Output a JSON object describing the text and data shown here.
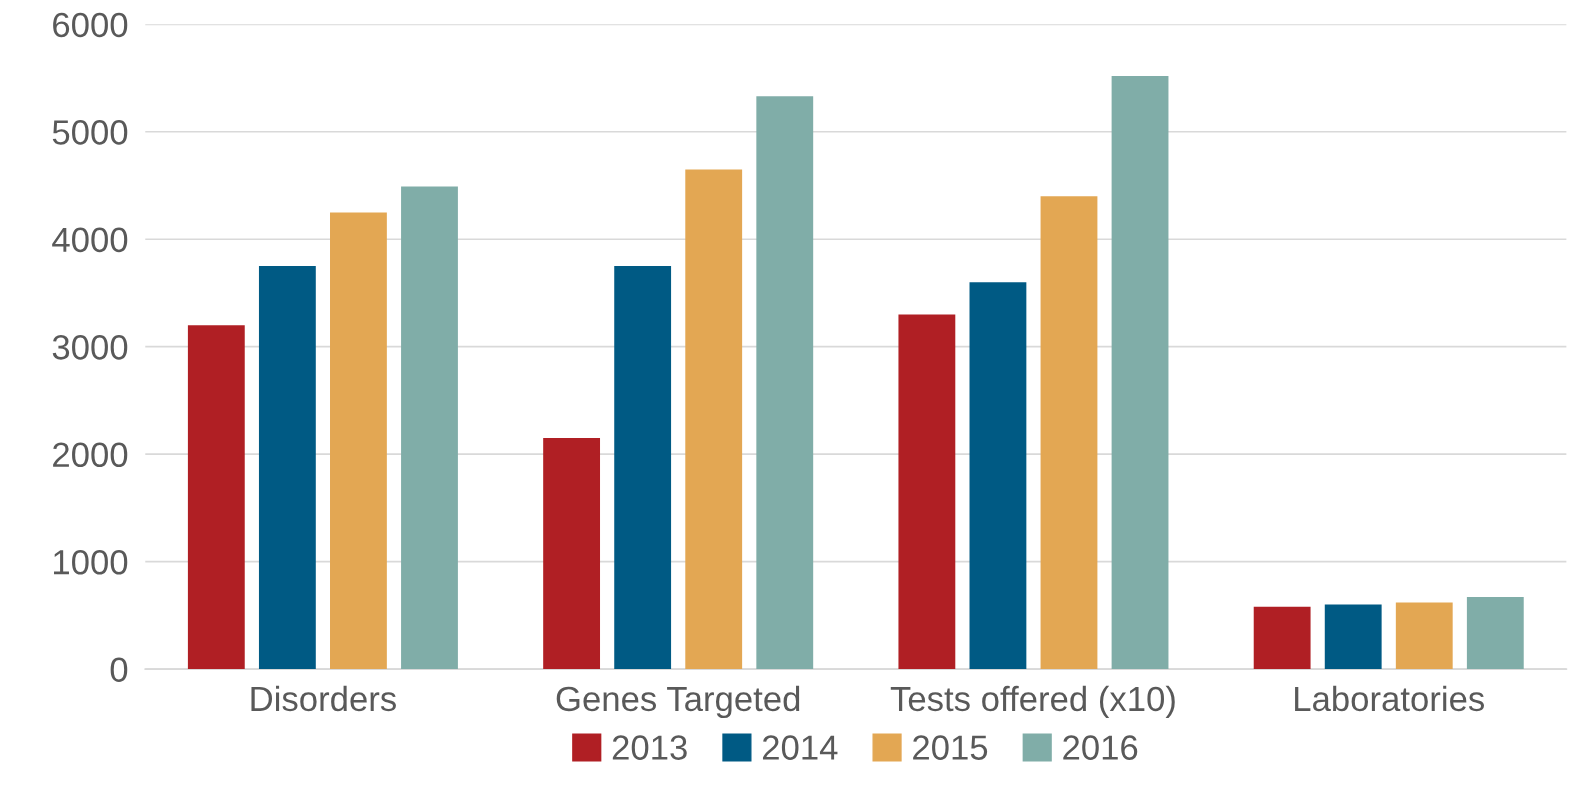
{
  "chart_data": {
    "type": "bar",
    "categories": [
      "Disorders",
      "Genes Targeted",
      "Tests offered (x10)",
      "Laboratories"
    ],
    "series": [
      {
        "name": "2013",
        "color": "#b01f24",
        "values": [
          3200,
          2150,
          3300,
          580
        ]
      },
      {
        "name": "2014",
        "color": "#005a84",
        "values": [
          3750,
          3750,
          3600,
          600
        ]
      },
      {
        "name": "2015",
        "color": "#e3a753",
        "values": [
          4250,
          4650,
          4400,
          620
        ]
      },
      {
        "name": "2016",
        "color": "#80ada8",
        "values": [
          4490,
          5330,
          5520,
          670
        ]
      }
    ],
    "ylim": [
      0,
      6000
    ],
    "yticks": [
      0,
      1000,
      2000,
      3000,
      4000,
      5000,
      6000
    ],
    "grid": "y",
    "legend": "bottom"
  }
}
